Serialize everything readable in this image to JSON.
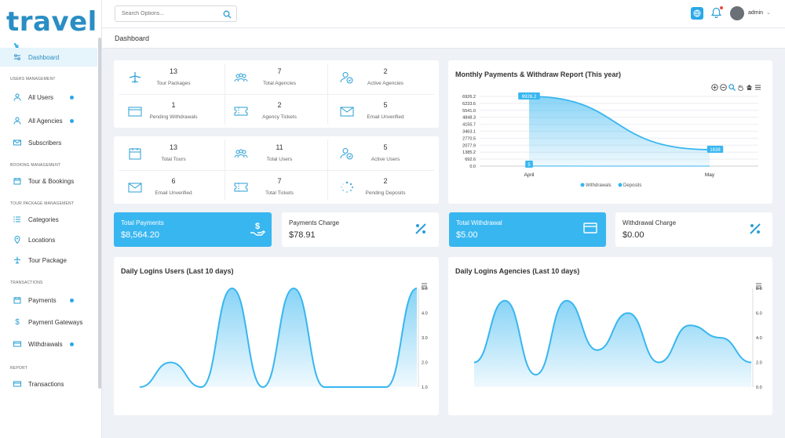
{
  "brand": {
    "logo_text": "travel"
  },
  "search": {
    "placeholder": "Search Options..."
  },
  "header": {
    "user_name": "admin"
  },
  "page": {
    "title": "Dashboard"
  },
  "sidebar": {
    "sections": {
      "users": "USERS MANAGEMENT",
      "booking": "BOOKING MANAGEMENT",
      "tour": "TOUR PACKAGE MANAGEMENT",
      "transactions": "TRANSACTIONS",
      "report": "REPORT"
    },
    "items": [
      {
        "label": "Dashboard",
        "icon": "sliders-icon"
      },
      {
        "label": "All Users",
        "icon": "user-icon"
      },
      {
        "label": "All Agencies",
        "icon": "user-icon"
      },
      {
        "label": "Subscribers",
        "icon": "envelope-icon"
      },
      {
        "label": "Tour & Bookings",
        "icon": "calendar-icon"
      },
      {
        "label": "Categories",
        "icon": "list-icon"
      },
      {
        "label": "Locations",
        "icon": "map-pin-icon"
      },
      {
        "label": "Tour Package",
        "icon": "plane-icon"
      },
      {
        "label": "Payments",
        "icon": "calendar-icon"
      },
      {
        "label": "Payment Gateways",
        "icon": "dollar-icon"
      },
      {
        "label": "Withdrawals",
        "icon": "credit-card-icon"
      },
      {
        "label": "Transactions",
        "icon": "credit-card-icon"
      }
    ]
  },
  "stats_top": [
    {
      "value": "13",
      "label": "Tour Packages",
      "icon": "plane-icon"
    },
    {
      "value": "7",
      "label": "Total Agencies",
      "icon": "users-icon"
    },
    {
      "value": "2",
      "label": "Active Agencies",
      "icon": "user-check-icon"
    },
    {
      "value": "1",
      "label": "Pending Withdrawals",
      "icon": "credit-card-icon"
    },
    {
      "value": "2",
      "label": "Agency Tickets",
      "icon": "ticket-icon"
    },
    {
      "value": "5",
      "label": "Email Unverified",
      "icon": "envelope-icon"
    }
  ],
  "stats_bottom": [
    {
      "value": "13",
      "label": "Total Tours",
      "icon": "calendar-icon"
    },
    {
      "value": "11",
      "label": "Total Users",
      "icon": "users-icon"
    },
    {
      "value": "5",
      "label": "Active Users",
      "icon": "user-check-icon"
    },
    {
      "value": "6",
      "label": "Email Unverified",
      "icon": "envelope-icon"
    },
    {
      "value": "7",
      "label": "Total Tickets",
      "icon": "ticket-icon"
    },
    {
      "value": "2",
      "label": "Pending Deposits",
      "icon": "spinner-icon"
    }
  ],
  "money_cards": [
    {
      "title": "Total Payments",
      "value": "$8,564.20",
      "icon": "hand-dollar-icon"
    },
    {
      "title": "Payments Charge",
      "value": "$78.91",
      "icon": "percent-icon"
    },
    {
      "title": "Total Withdrawal",
      "value": "$5.00",
      "icon": "credit-card-icon"
    },
    {
      "title": "Withdrawal Charge",
      "value": "$0.00",
      "icon": "percent-icon"
    }
  ],
  "colors": {
    "accent": "#38b6f0",
    "brand": "#2a8ec4"
  },
  "chart_data": [
    {
      "type": "area",
      "title": "Monthly Payments & Withdraw Report (This year)",
      "categories": [
        "April",
        "May"
      ],
      "y_ticks": [
        "6926.2",
        "6233.6",
        "5541.0",
        "4848.3",
        "4155.7",
        "3463.1",
        "2770.5",
        "2077.9",
        "1385.2",
        "692.6",
        "0.0"
      ],
      "ylim": [
        0,
        6926.2
      ],
      "series": [
        {
          "name": "Withdrawals",
          "values": [
            5,
            0
          ]
        },
        {
          "name": "Deposits",
          "values": [
            6926.2,
            1638
          ]
        }
      ],
      "data_labels": [
        "6926.2",
        "1638",
        "5"
      ],
      "legend": "bottom"
    },
    {
      "type": "area",
      "title": "Daily Logins Users (Last 10 days)",
      "y_ticks": [
        "5.0",
        "4.0",
        "3.0",
        "2.0",
        "1.0"
      ],
      "ylim": [
        1,
        5
      ],
      "y_axis_position": "right",
      "values": [
        1,
        2,
        1,
        5,
        1,
        5,
        1,
        1,
        1,
        5
      ]
    },
    {
      "type": "area",
      "title": "Daily Logins Agencies (Last 10 days)",
      "y_ticks": [
        "8.0",
        "6.0",
        "4.0",
        "2.0",
        "0.0"
      ],
      "ylim": [
        0,
        8
      ],
      "y_axis_position": "right",
      "values": [
        2,
        7,
        1,
        7,
        3,
        6,
        2,
        5,
        4,
        2
      ]
    }
  ]
}
